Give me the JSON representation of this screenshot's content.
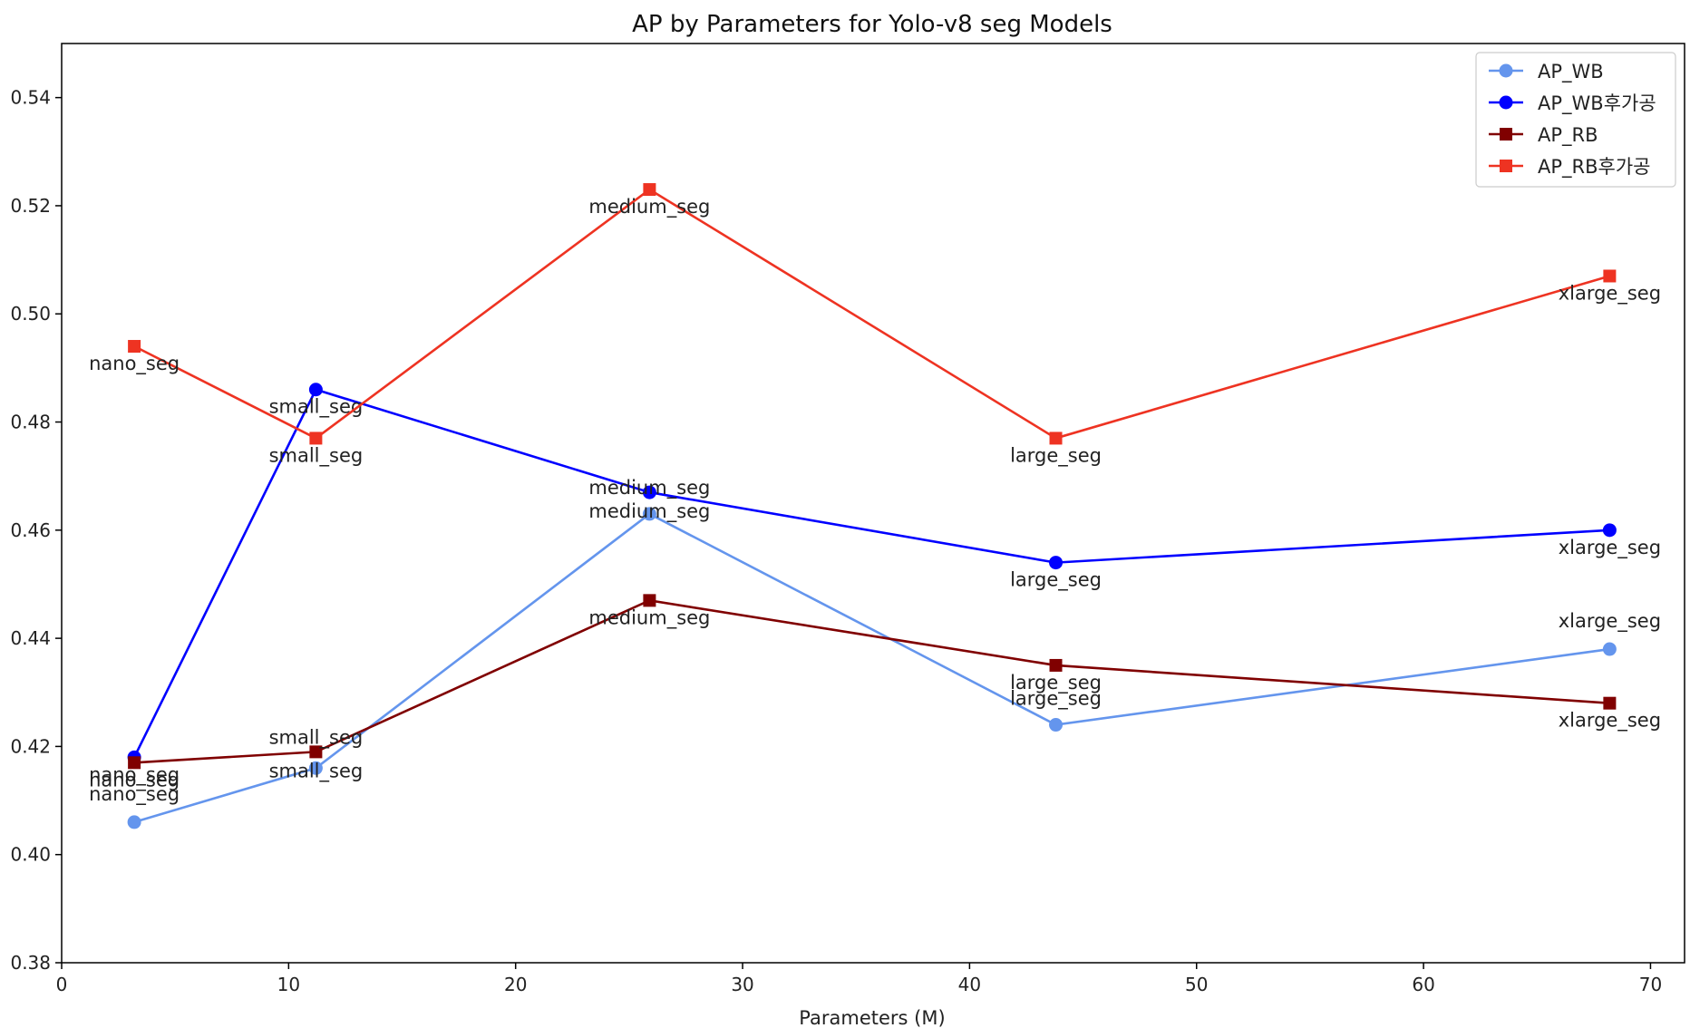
{
  "chart_data": {
    "type": "line",
    "title": "AP by Parameters for Yolo-v8 seg Models",
    "xlabel": "Parameters (M)",
    "ylabel": "",
    "xlim": [
      0,
      71.5
    ],
    "ylim": [
      0.38,
      0.55
    ],
    "xticks": [
      0,
      10,
      20,
      30,
      40,
      50,
      60,
      70
    ],
    "yticks": [
      0.38,
      0.4,
      0.42,
      0.44,
      0.46,
      0.48,
      0.5,
      0.52,
      0.54
    ],
    "grid": false,
    "legend_position": "top-right",
    "x": [
      3.2,
      11.2,
      25.9,
      43.8,
      68.2
    ],
    "point_labels": [
      "nano_seg",
      "small_seg",
      "medium_seg",
      "large_seg",
      "xlarge_seg"
    ],
    "series": [
      {
        "name": "AP_WB",
        "color": "#6495ed",
        "marker": "circle",
        "values": [
          0.406,
          0.416,
          0.463,
          0.424,
          0.438
        ],
        "label_offsets": [
          [
            0,
            -24
          ],
          [
            0,
            10
          ],
          [
            0,
            4
          ],
          [
            0,
            -22
          ],
          [
            0,
            -24
          ]
        ]
      },
      {
        "name": "AP_WB후가공",
        "color": "#0000ff",
        "marker": "circle",
        "values": [
          0.418,
          0.486,
          0.467,
          0.454,
          0.46
        ],
        "label_offsets": [
          [
            0,
            26
          ],
          [
            0,
            26
          ],
          [
            0,
            2
          ],
          [
            0,
            26
          ],
          [
            0,
            26
          ]
        ]
      },
      {
        "name": "AP_RB",
        "color": "#800000",
        "marker": "square",
        "values": [
          0.417,
          0.419,
          0.447,
          0.435,
          0.428
        ],
        "label_offsets": [
          [
            0,
            26
          ],
          [
            0,
            -9
          ],
          [
            0,
            26
          ],
          [
            0,
            26
          ],
          [
            0,
            26
          ]
        ]
      },
      {
        "name": "AP_RB후가공",
        "color": "#ee3322",
        "marker": "square",
        "values": [
          0.494,
          0.477,
          0.523,
          0.477,
          0.507
        ],
        "label_offsets": [
          [
            0,
            26
          ],
          [
            0,
            26
          ],
          [
            0,
            26
          ],
          [
            0,
            26
          ],
          [
            0,
            26
          ]
        ]
      }
    ]
  }
}
